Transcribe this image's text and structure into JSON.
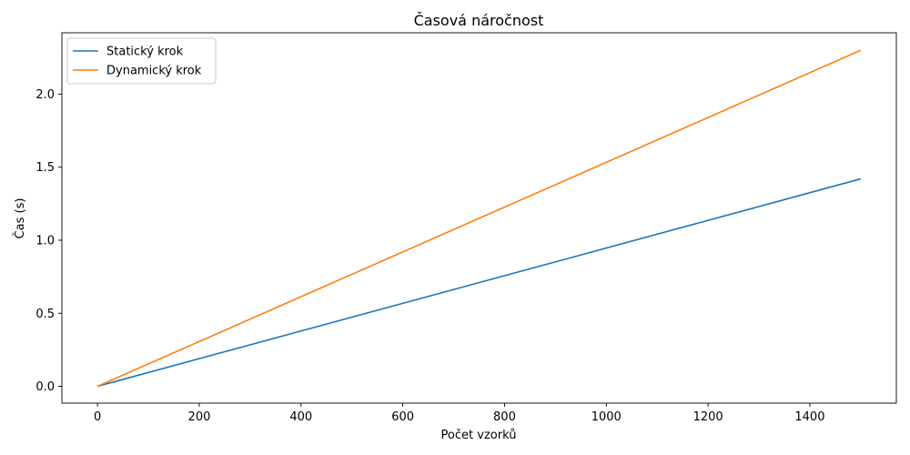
{
  "chart_data": {
    "type": "line",
    "title": "Časová náročnost",
    "xlabel": "Počet vzorků",
    "ylabel": "Čas (s)",
    "xlim": [
      -70,
      1570
    ],
    "ylim": [
      -0.115,
      2.42
    ],
    "xticks": [
      0,
      200,
      400,
      600,
      800,
      1000,
      1200,
      1400
    ],
    "xtick_labels": [
      "0",
      "200",
      "400",
      "600",
      "800",
      "1000",
      "1200",
      "1400"
    ],
    "yticks": [
      0.0,
      0.5,
      1.0,
      1.5,
      2.0
    ],
    "ytick_labels": [
      "0.0",
      "0.5",
      "1.0",
      "1.5",
      "2.0"
    ],
    "grid": false,
    "legend_position": "top-left",
    "series": [
      {
        "name": "Statický krok",
        "color": "#1f77b4",
        "x": [
          0,
          1500
        ],
        "y": [
          0.0,
          1.42
        ]
      },
      {
        "name": "Dynamický krok",
        "color": "#ff7f0e",
        "x": [
          0,
          1500
        ],
        "y": [
          0.0,
          2.3
        ]
      }
    ]
  }
}
